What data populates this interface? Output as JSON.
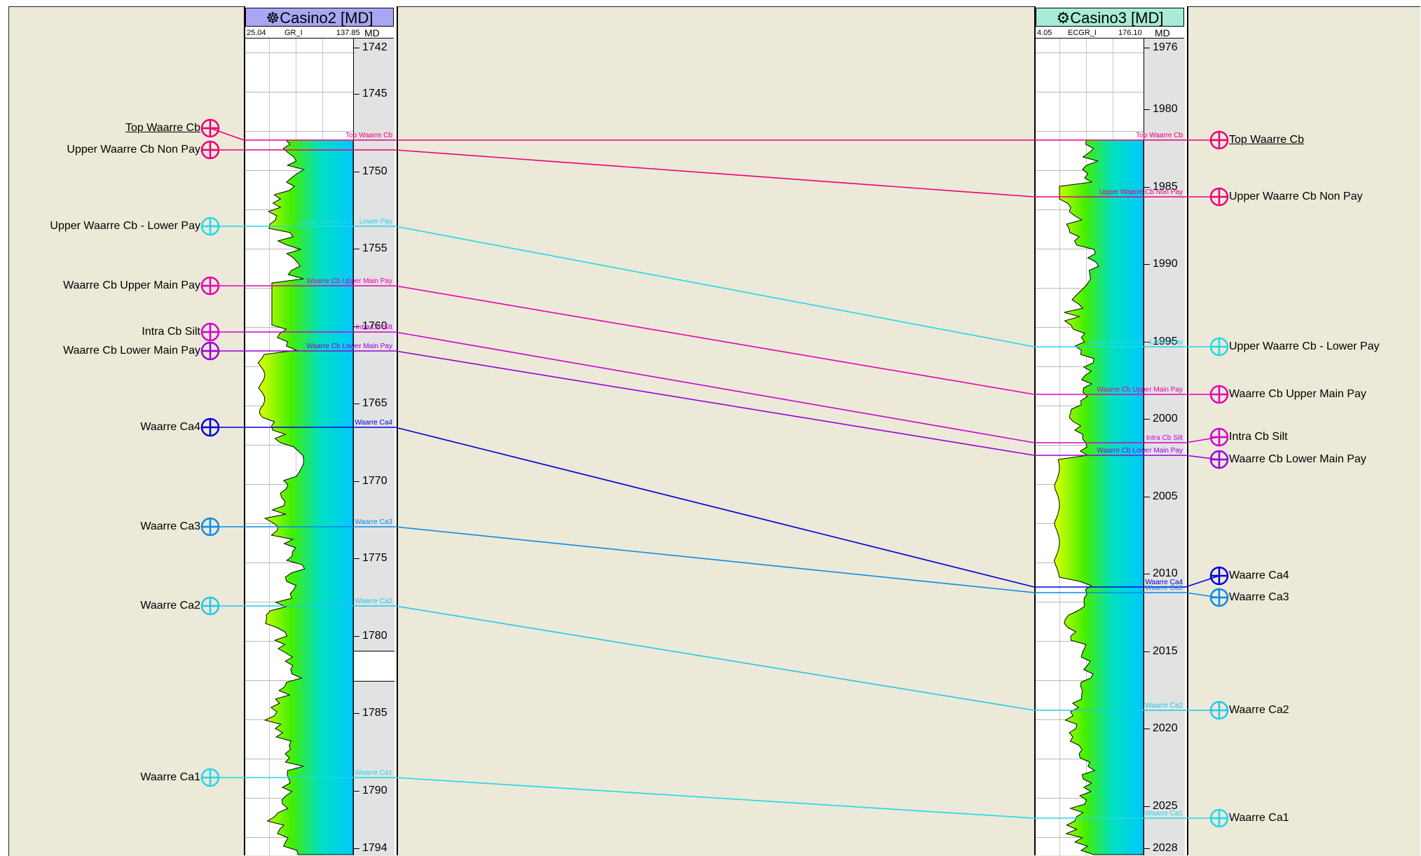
{
  "wells": [
    {
      "id": "casino2",
      "title": "Casino2 [MD]",
      "icon": "well-symbol-icon",
      "header_color": "#a9a6f3",
      "log_min": "25.04",
      "log_name": "GR_I",
      "log_max": "137.85",
      "depth_header": "MD",
      "depth_ticks": [
        "1742",
        "1745",
        "1750",
        "1755",
        "1760",
        "1765",
        "1770",
        "1775",
        "1780",
        "1785",
        "1790",
        "1794"
      ]
    },
    {
      "id": "casino3",
      "title": "Casino3 [MD]",
      "icon": "gear-well-icon",
      "header_color": "#a6ecd8",
      "log_min": "4.05",
      "log_name": "ECGR_I",
      "log_max": "176.10",
      "depth_header": "MD",
      "depth_ticks": [
        "1976",
        "1980",
        "1985",
        "1990",
        "1995",
        "2000",
        "2005",
        "2010",
        "2015",
        "2020",
        "2025",
        "2028"
      ]
    }
  ],
  "horizons": [
    {
      "name": "Top Waarre Cb",
      "color": "#e8007a",
      "underline": true
    },
    {
      "name": "Upper Waarre Cb Non Pay",
      "color": "#e8007a",
      "underline": false
    },
    {
      "name": "Upper Waarre Cb - Lower Pay",
      "color": "#22d8e8",
      "underline": false
    },
    {
      "name": "Waarre Cb Upper Main Pay",
      "color": "#e800b0",
      "underline": false
    },
    {
      "name": "Intra Cb Silt",
      "color": "#d000d0",
      "underline": false
    },
    {
      "name": "Waarre Cb Lower Main Pay",
      "color": "#9a00d8",
      "underline": false
    },
    {
      "name": "Waarre Ca4",
      "color": "#0000d8",
      "underline": false
    },
    {
      "name": "Waarre Ca3",
      "color": "#0a8ae8",
      "underline": false
    },
    {
      "name": "Waarre Ca2",
      "color": "#22c8e8",
      "underline": false
    },
    {
      "name": "Waarre Ca1",
      "color": "#22d8e8",
      "underline": false
    }
  ],
  "track_labels": {
    "casino2": [
      "Top Waarre Cb",
      "",
      "Upper Waarre Cb - Lower Pay",
      "Waarre Cb Upper Main Pay",
      "Intra Cb Silt",
      "Waarre Cb Lower Main Pay",
      "Waarre Ca4",
      "Waarre Ca3",
      "Waarre Ca2",
      "Waarre Ca1"
    ],
    "casino3": [
      "Top Waarre Cb",
      "Upper Waarre Cb Non Pay",
      "Upper Waarre Cb - Lower Pay",
      "Waarre Cb Upper Main Pay",
      "Intra Cb Silt",
      "Waarre Cb Lower Main Pay",
      "Waarre Ca4",
      "Waarre Ca3",
      "Waarre Ca2",
      "Waarre Ca1"
    ]
  }
}
